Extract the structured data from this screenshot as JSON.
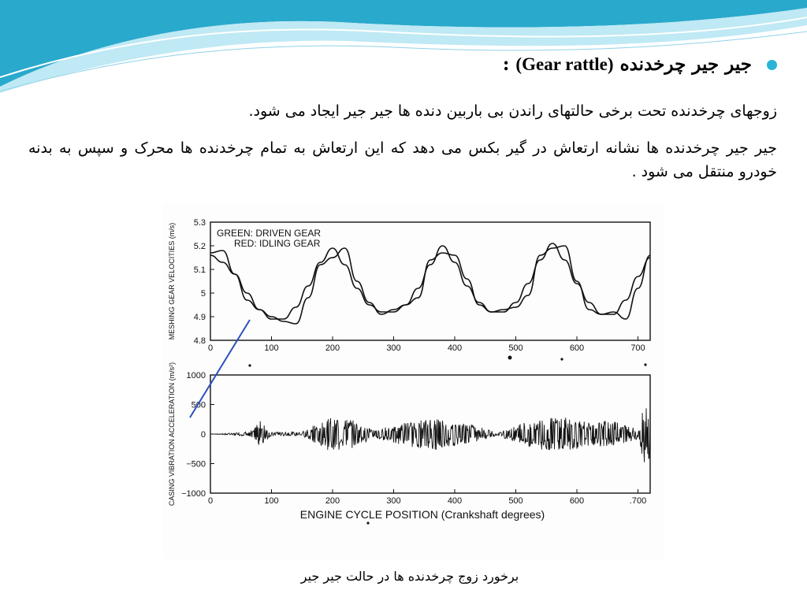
{
  "slide": {
    "heading": {
      "persian": "جیر جیر چرخدنده",
      "english": "(Gear rattle)",
      "suffix": ":"
    },
    "paragraph_1": "زوجهای چرخدنده تحت برخی حالتهای راندن بی باربین دنده ها جیر جیر ایجاد می شود.",
    "paragraph_2": "جیر جیر چرخدنده ها نشانه ارتعاش در گیر بکس می دهد که این ارتعاش به تمام چرخدنده ها محرک و سپس به بدنه خودرو منتقل می شود .",
    "caption": "برخورد زوج چرخدنده ها در حالت جیر جیر",
    "colors": {
      "bullet": "#2ab3d6",
      "wave_dark": "#29a9cc",
      "wave_light": "#bfe9f4",
      "pointer_line": "#2c4fc0"
    }
  },
  "chart_data": [
    {
      "type": "line",
      "ylabel": "MESHING GEAR VELOCITIES (m/s)",
      "xlabel": "",
      "xlim": [
        0,
        720
      ],
      "ylim": [
        4.8,
        5.3
      ],
      "xticks": [
        "0",
        "100",
        "200",
        "300",
        "400",
        "500",
        "600",
        "700"
      ],
      "yticks": [
        "4.8",
        "4.9",
        "5",
        "5.1",
        "5.2",
        "5.3"
      ],
      "legend": [
        "GREEN:  DRIVEN GEAR",
        "RED:  IDLING GEAR"
      ],
      "legend_placement": "top-left",
      "series": [
        {
          "name": "DRIVEN GEAR",
          "x": [
            0,
            20,
            40,
            60,
            80,
            100,
            120,
            140,
            160,
            180,
            200,
            220,
            240,
            260,
            280,
            300,
            320,
            340,
            360,
            380,
            400,
            420,
            440,
            460,
            480,
            500,
            520,
            540,
            560,
            580,
            600,
            620,
            640,
            660,
            680,
            700,
            720
          ],
          "values": [
            5.16,
            5.13,
            5.08,
            5.0,
            4.93,
            4.89,
            4.89,
            4.94,
            5.03,
            5.13,
            5.19,
            5.12,
            5.02,
            4.95,
            4.92,
            4.92,
            4.95,
            5.02,
            5.12,
            5.2,
            5.13,
            5.03,
            4.96,
            4.92,
            4.92,
            4.96,
            5.04,
            5.14,
            5.21,
            5.14,
            5.04,
            4.96,
            4.91,
            4.91,
            4.97,
            5.07,
            5.15
          ]
        },
        {
          "name": "IDLING GEAR",
          "x": [
            0,
            20,
            40,
            60,
            80,
            100,
            120,
            140,
            160,
            180,
            200,
            220,
            240,
            260,
            280,
            300,
            320,
            340,
            360,
            380,
            400,
            420,
            440,
            460,
            480,
            500,
            520,
            540,
            560,
            580,
            600,
            620,
            640,
            660,
            680,
            700,
            720
          ],
          "values": [
            5.17,
            5.18,
            5.08,
            4.97,
            4.93,
            4.9,
            4.88,
            4.87,
            4.98,
            5.12,
            5.15,
            5.19,
            5.05,
            4.96,
            4.91,
            4.93,
            4.95,
            4.98,
            5.14,
            5.17,
            5.16,
            5.06,
            4.95,
            4.92,
            4.93,
            4.94,
            4.99,
            5.16,
            5.19,
            5.2,
            5.05,
            4.93,
            4.91,
            4.92,
            4.89,
            5.02,
            5.16
          ]
        }
      ]
    },
    {
      "type": "line",
      "ylabel": "CASING VIBRATION ACCELERATION (m/s²)",
      "xlabel": "ENGINE CYCLE POSITION (Crankshaft degrees)",
      "xlim": [
        0,
        720
      ],
      "ylim": [
        -1000,
        1000
      ],
      "xticks": [
        "0",
        "100",
        "200",
        "300",
        "400",
        "500",
        "600",
        ".700"
      ],
      "yticks": [
        "1000",
        "500",
        "0",
        "−500",
        "−1000"
      ],
      "series": [
        {
          "x": [
            0,
            40,
            70,
            80,
            100,
            150,
            170,
            190,
            230,
            270,
            290,
            330,
            370,
            390,
            430,
            470,
            500,
            540,
            580,
            620,
            660,
            700,
            710,
            720
          ],
          "values": [
            0,
            20,
            60,
            240,
            30,
            40,
            150,
            280,
            250,
            60,
            130,
            220,
            270,
            210,
            160,
            20,
            150,
            260,
            300,
            200,
            240,
            80,
            480,
            480
          ]
        }
      ]
    }
  ]
}
